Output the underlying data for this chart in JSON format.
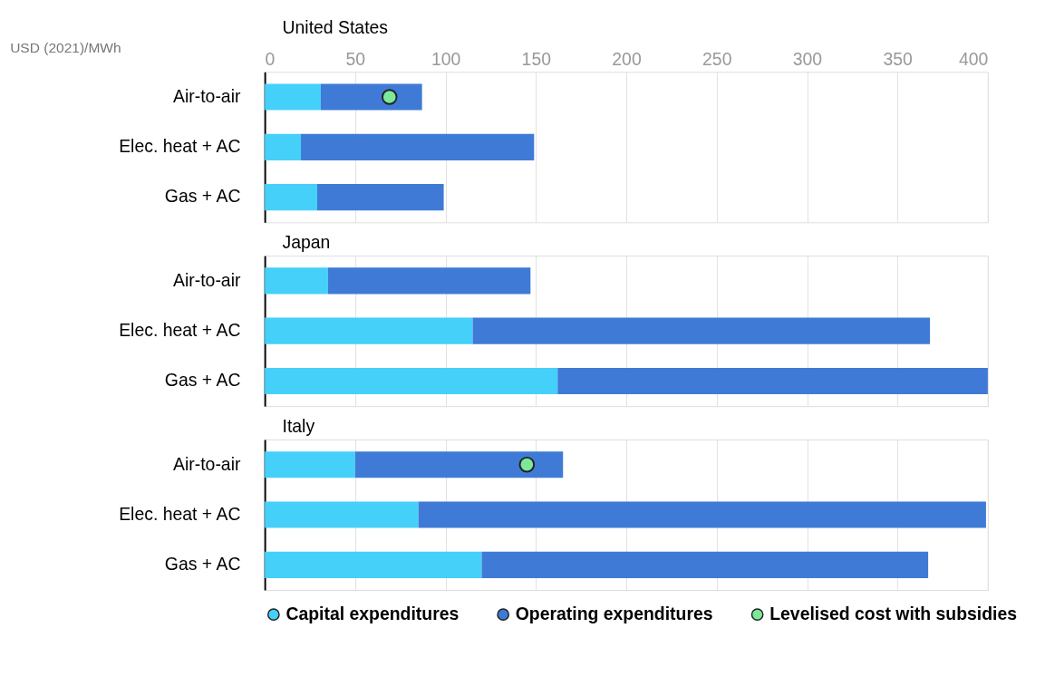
{
  "chart_data": [
    {
      "type": "bar",
      "orientation": "horizontal",
      "stacked": true,
      "title": "United States",
      "xlabel": "USD (2021)/MWh",
      "categories": [
        "Air-to-air",
        "Elec. heat + AC",
        "Gas + AC"
      ],
      "xlim": [
        0,
        400
      ],
      "xticks": [
        0,
        50,
        100,
        150,
        200,
        250,
        300,
        350,
        400
      ],
      "grid": "x",
      "legend": false,
      "series": [
        {
          "color": "#45d0fa",
          "values": [
            31,
            20,
            29
          ]
        },
        {
          "color": "#3f7bd6",
          "values": [
            56,
            129,
            70
          ]
        },
        {
          "type": "scatter",
          "marker": "circle",
          "color": "#7de89a",
          "values": [
            69,
            null,
            null
          ]
        }
      ]
    },
    {
      "type": "bar",
      "orientation": "horizontal",
      "stacked": true,
      "title": "Japan",
      "categories": [
        "Air-to-air",
        "Elec. heat + AC",
        "Gas + AC"
      ],
      "xlim": [
        0,
        400
      ],
      "xticks": [
        0,
        50,
        100,
        150,
        200,
        250,
        300,
        350,
        400
      ],
      "grid": "x",
      "legend": false,
      "tick_labels": "y",
      "series": [
        {
          "color": "#45d0fa",
          "values": [
            35,
            115,
            162
          ]
        },
        {
          "color": "#3f7bd6",
          "values": [
            112,
            253,
            238
          ]
        }
      ]
    },
    {
      "type": "bar",
      "orientation": "horizontal",
      "stacked": true,
      "title": "Italy",
      "categories": [
        "Air-to-air",
        "Elec. heat + AC",
        "Gas + AC"
      ],
      "xlim": [
        0,
        400
      ],
      "xticks": [
        0,
        50,
        100,
        150,
        200,
        250,
        300,
        350,
        400
      ],
      "grid": "x",
      "legend": "bottom",
      "tick_labels": "y",
      "series": [
        {
          "name": "Capital expenditures",
          "color": "#45d0fa",
          "values": [
            50,
            85,
            120
          ]
        },
        {
          "name": "Operating expenditures",
          "color": "#3f7bd6",
          "values": [
            115,
            314,
            247
          ]
        },
        {
          "name": "Levelised cost with subsidies",
          "type": "scatter",
          "marker": "circle",
          "color": "#7de89a",
          "values": [
            145,
            null,
            null
          ]
        }
      ]
    }
  ]
}
